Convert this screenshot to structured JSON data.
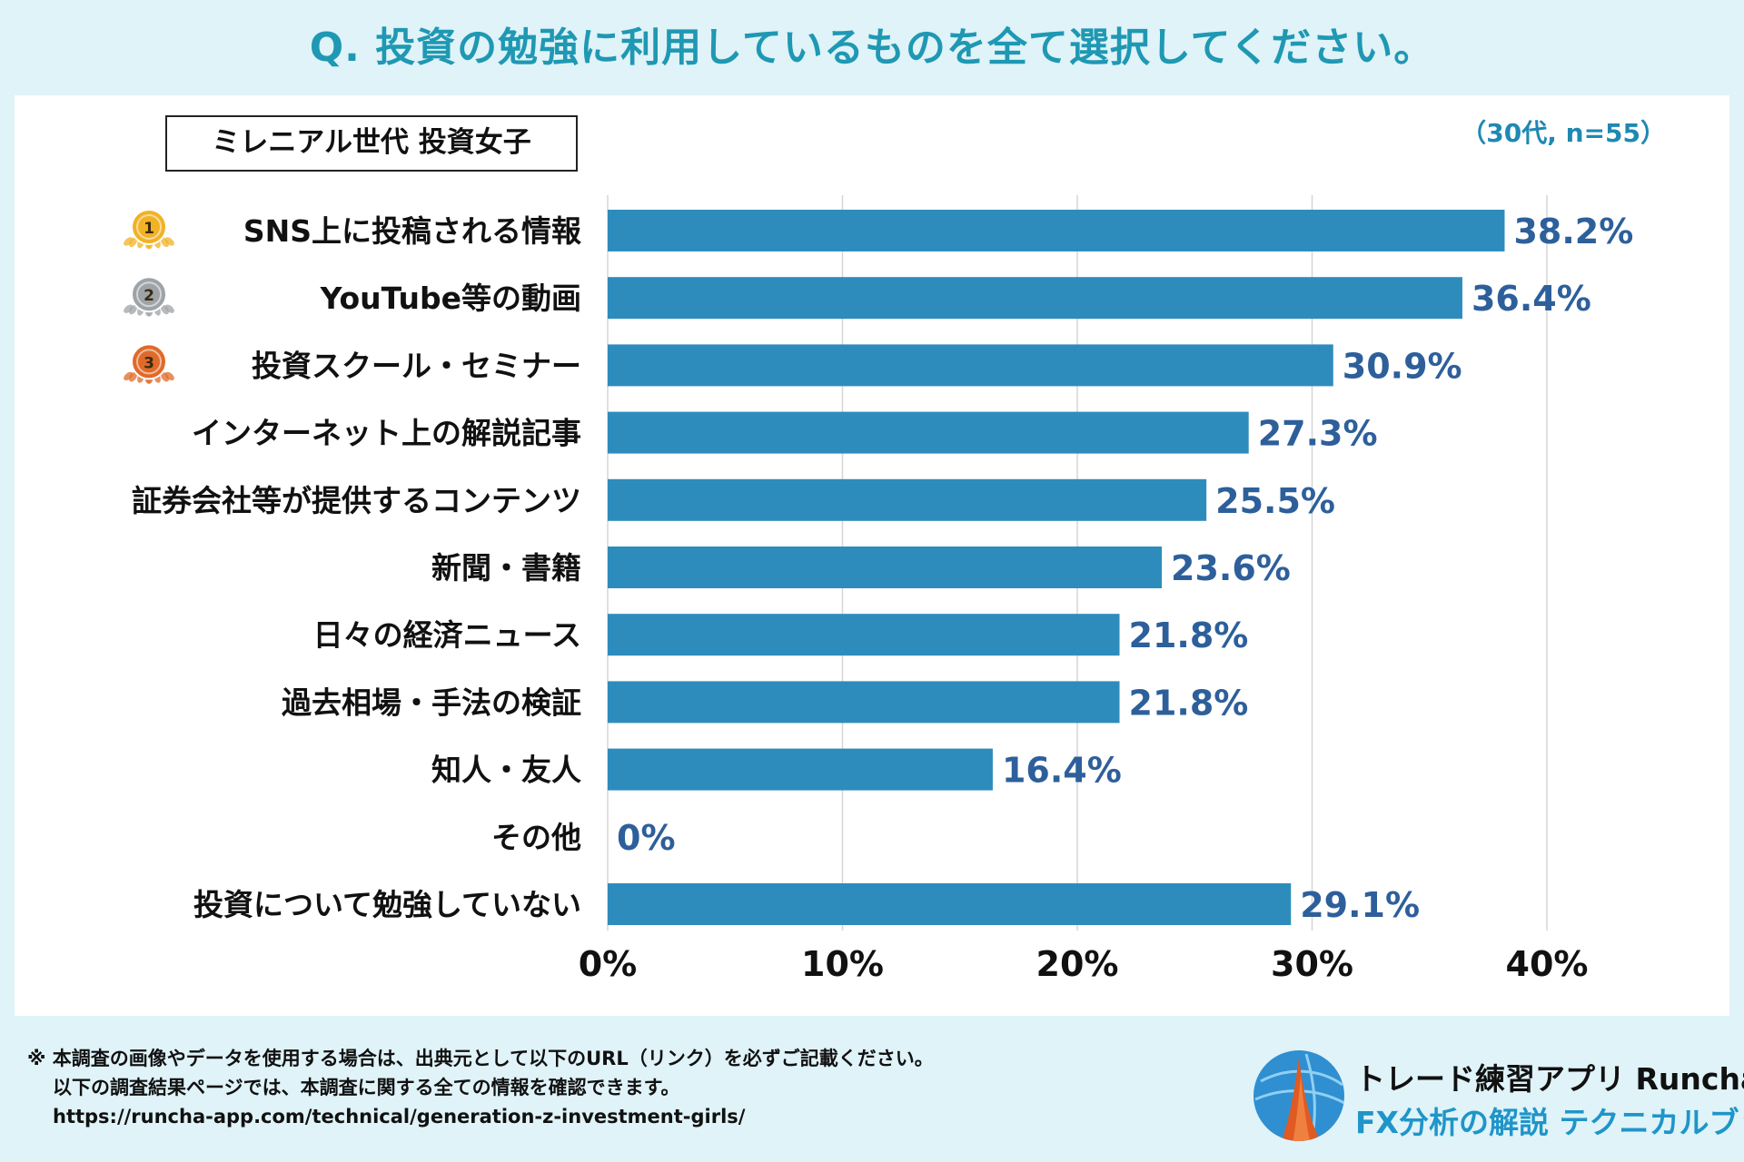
{
  "header": {
    "question": "Q. 投資の勉強に利用しているものを全て選択してください。",
    "segment_label": "ミレニアル世代 投資女子",
    "sample_note": "（30代, n=55）"
  },
  "chart_data": {
    "type": "bar",
    "orientation": "horizontal",
    "categories": [
      "SNS上に投稿される情報",
      "YouTube等の動画",
      "投資スクール・セミナー",
      "インターネット上の解説記事",
      "証券会社等が提供するコンテンツ",
      "新聞・書籍",
      "日々の経済ニュース",
      "過去相場・手法の検証",
      "知人・友人",
      "その他",
      "投資について勉強していない"
    ],
    "values": [
      38.2,
      36.4,
      30.9,
      27.3,
      25.5,
      23.6,
      21.8,
      21.8,
      16.4,
      0,
      29.1
    ],
    "value_labels": [
      "38.2%",
      "36.4%",
      "30.9%",
      "27.3%",
      "25.5%",
      "23.6%",
      "21.8%",
      "21.8%",
      "16.4%",
      "0%",
      "29.1%"
    ],
    "rank_medals": [
      "1",
      "2",
      "3"
    ],
    "x_ticks": [
      0,
      10,
      20,
      30,
      40
    ],
    "x_tick_labels": [
      "0%",
      "10%",
      "20%",
      "30%",
      "40%"
    ],
    "xlim": [
      0,
      40
    ],
    "grid": true,
    "bar_color": "#2e8cbd",
    "value_label_color": "#2d5f9b",
    "medal_colors": [
      "#f2b226",
      "#9ea3a7",
      "#e06a2a"
    ]
  },
  "footer": {
    "note_line1": "※ 本調査の画像やデータを使用する場合は、出典元として以下のURL（リンク）を必ずご記載ください。",
    "note_line2": "以下の調査結果ページでは、本調査に関する全ての情報を確認できます。",
    "note_url": "https://runcha-app.com/technical/generation-z-investment-girls/"
  },
  "brand": {
    "line1": "トレード練習アプリ Runcha",
    "line2": "FX分析の解説 テクニカルブック"
  }
}
